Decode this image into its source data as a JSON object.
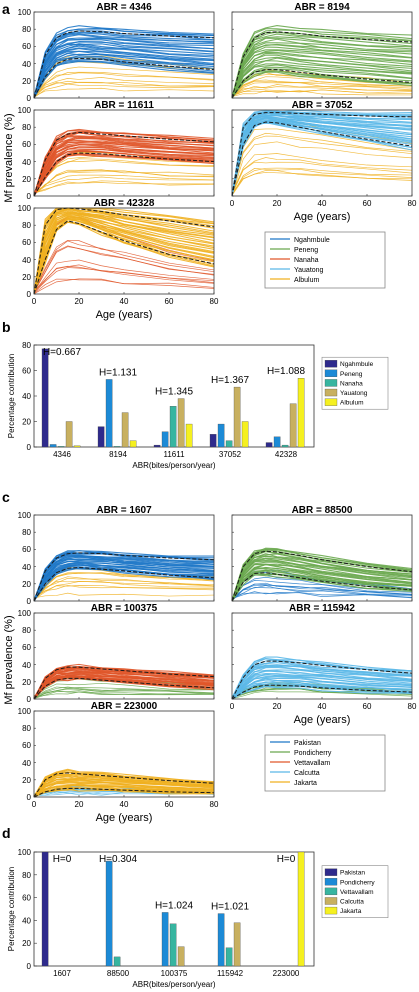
{
  "figure": {
    "panel_labels": [
      "a",
      "b",
      "c",
      "d"
    ]
  },
  "colors": {
    "ngahmbule": "#1f78c8",
    "peneng": "#6aa84f",
    "nanaha": "#e0572a",
    "yauatong": "#5bb8e8",
    "albulum": "#f0b020",
    "pakistan": "#1f78c8",
    "pondicherry": "#6aa84f",
    "vettavallam": "#e0572a",
    "calcutta": "#5bb8e8",
    "jakarta": "#f0b020",
    "bar1": "#2e2a8c",
    "bar2": "#1c8ad6",
    "bar3": "#37b5a0",
    "bar4": "#c8b060",
    "bar5": "#f5f020"
  },
  "panel_a": {
    "ylabel": "Mf prevalence (%)",
    "xlabel": "Age (years)",
    "xticks": [
      "0",
      "20",
      "40",
      "60",
      "80"
    ],
    "yticks": [
      "0",
      "20",
      "40",
      "60",
      "80",
      "100"
    ],
    "titles": [
      "ABR = 4346",
      "ABR = 8194",
      "ABR = 11611",
      "ABR = 37052",
      "ABR = 42328"
    ],
    "legend": [
      "Ngahmbule",
      "Peneng",
      "Nanaha",
      "Yauatong",
      "Albulum"
    ]
  },
  "panel_c": {
    "ylabel": "Mf prevalence (%)",
    "xlabel": "Age (years)",
    "xticks": [
      "0",
      "20",
      "40",
      "60",
      "80"
    ],
    "yticks": [
      "0",
      "20",
      "40",
      "60",
      "80",
      "100"
    ],
    "titles": [
      "ABR = 1607",
      "ABR = 88500",
      "ABR = 100375",
      "ABR = 115942",
      "ABR = 223000"
    ],
    "legend": [
      "Pakistan",
      "Pondicherry",
      "Vettavallam",
      "Calcutta",
      "Jakarta"
    ]
  },
  "chart_data": [
    {
      "type": "line",
      "title": "ABR = 4346",
      "xlabel": "Age (years)",
      "ylabel": "Mf prevalence (%)",
      "xlim": [
        0,
        80
      ],
      "ylim": [
        0,
        100
      ],
      "series": [
        {
          "name": "Ngahmbule",
          "x": [
            0,
            5,
            10,
            15,
            20,
            30,
            40,
            60,
            80
          ],
          "y": [
            0,
            50,
            70,
            76,
            78,
            77,
            75,
            72,
            70
          ]
        },
        {
          "name": "Ngahmbule",
          "x": [
            0,
            5,
            10,
            15,
            20,
            30,
            40,
            60,
            80
          ],
          "y": [
            0,
            25,
            40,
            45,
            46,
            45,
            42,
            37,
            33
          ]
        },
        {
          "name": "Albulum",
          "x": [
            0,
            5,
            10,
            15,
            20,
            30,
            40,
            60,
            80
          ],
          "y": [
            0,
            10,
            18,
            22,
            24,
            24,
            23,
            20,
            18
          ]
        }
      ]
    },
    {
      "type": "line",
      "title": "ABR = 8194",
      "xlabel": "Age (years)",
      "ylabel": "Mf prevalence (%)",
      "xlim": [
        0,
        80
      ],
      "ylim": [
        0,
        100
      ],
      "series": [
        {
          "name": "Peneng",
          "x": [
            0,
            5,
            10,
            15,
            20,
            30,
            40,
            60,
            80
          ],
          "y": [
            0,
            48,
            70,
            76,
            77,
            75,
            72,
            68,
            65
          ]
        },
        {
          "name": "Peneng",
          "x": [
            0,
            5,
            10,
            15,
            20,
            30,
            40,
            60,
            80
          ],
          "y": [
            0,
            20,
            30,
            33,
            33,
            30,
            27,
            22,
            18
          ]
        }
      ]
    },
    {
      "type": "line",
      "title": "ABR = 11611",
      "xlabel": "Age (years)",
      "ylabel": "Mf prevalence (%)",
      "xlim": [
        0,
        80
      ],
      "ylim": [
        0,
        100
      ],
      "series": [
        {
          "name": "Nanaha",
          "x": [
            0,
            5,
            10,
            15,
            20,
            30,
            40,
            60,
            80
          ],
          "y": [
            0,
            42,
            65,
            72,
            74,
            72,
            70,
            66,
            63
          ]
        },
        {
          "name": "Nanaha",
          "x": [
            0,
            5,
            10,
            15,
            20,
            30,
            40,
            60,
            80
          ],
          "y": [
            0,
            22,
            40,
            48,
            50,
            49,
            47,
            43,
            40
          ]
        }
      ]
    },
    {
      "type": "line",
      "title": "ABR = 37052",
      "xlabel": "Age (years)",
      "ylabel": "Mf prevalence (%)",
      "xlim": [
        0,
        80
      ],
      "ylim": [
        0,
        100
      ],
      "series": [
        {
          "name": "Yauatong",
          "x": [
            0,
            5,
            10,
            15,
            20,
            30,
            40,
            60,
            80
          ],
          "y": [
            0,
            80,
            95,
            97,
            97,
            96,
            95,
            93,
            92
          ]
        },
        {
          "name": "Yauatong",
          "x": [
            0,
            5,
            10,
            15,
            20,
            30,
            40,
            60,
            80
          ],
          "y": [
            0,
            60,
            82,
            86,
            85,
            80,
            75,
            66,
            58
          ]
        }
      ]
    },
    {
      "type": "line",
      "title": "ABR = 42328",
      "xlabel": "Age (years)",
      "ylabel": "Mf prevalence (%)",
      "xlim": [
        0,
        80
      ],
      "ylim": [
        0,
        100
      ],
      "series": [
        {
          "name": "Albulum",
          "x": [
            0,
            5,
            10,
            15,
            20,
            30,
            40,
            60,
            80
          ],
          "y": [
            0,
            80,
            98,
            100,
            99,
            96,
            92,
            85,
            78
          ]
        },
        {
          "name": "Albulum",
          "x": [
            0,
            5,
            10,
            15,
            20,
            30,
            40,
            60,
            80
          ],
          "y": [
            0,
            40,
            75,
            85,
            82,
            72,
            62,
            46,
            35
          ]
        }
      ]
    },
    {
      "type": "bar",
      "xlabel": "ABR(bites/person/year)",
      "ylabel": "Percentage contribution",
      "ylim": [
        0,
        80
      ],
      "yticks": [
        0,
        20,
        40,
        60,
        80
      ],
      "categories": [
        "4346",
        "8194",
        "11611",
        "37052",
        "42328"
      ],
      "annotations": [
        "H=0.667",
        "H=1.131",
        "H=1.345",
        "H=1.367",
        "H=1.088"
      ],
      "series": [
        {
          "name": "Ngahmbule",
          "values": [
            77,
            16,
            1.5,
            10,
            3.5
          ]
        },
        {
          "name": "Peneng",
          "values": [
            2,
            53,
            12,
            18,
            8
          ]
        },
        {
          "name": "Nanaha",
          "values": [
            0.5,
            0.5,
            32,
            5,
            1.5
          ]
        },
        {
          "name": "Yauatong",
          "values": [
            20,
            27,
            38,
            47,
            34
          ]
        },
        {
          "name": "Albulum",
          "values": [
            1,
            5,
            18,
            20,
            54
          ]
        }
      ]
    },
    {
      "type": "line",
      "title": "ABR = 1607",
      "xlabel": "Age (years)",
      "ylabel": "Mf prevalence (%)",
      "xlim": [
        0,
        80
      ],
      "ylim": [
        0,
        100
      ],
      "series": [
        {
          "name": "Pakistan",
          "x": [
            0,
            5,
            10,
            15,
            20,
            30,
            40,
            60,
            80
          ],
          "y": [
            0,
            35,
            50,
            55,
            56,
            55,
            53,
            50,
            48
          ]
        },
        {
          "name": "Pakistan",
          "x": [
            0,
            5,
            10,
            15,
            20,
            30,
            40,
            60,
            80
          ],
          "y": [
            0,
            20,
            33,
            38,
            39,
            37,
            35,
            30,
            27
          ]
        }
      ]
    },
    {
      "type": "line",
      "title": "ABR = 88500",
      "xlabel": "Age (years)",
      "ylabel": "Mf prevalence (%)",
      "xlim": [
        0,
        80
      ],
      "ylim": [
        0,
        100
      ],
      "series": [
        {
          "name": "Pondicherry",
          "x": [
            0,
            5,
            10,
            15,
            20,
            30,
            40,
            60,
            80
          ],
          "y": [
            0,
            40,
            55,
            58,
            57,
            53,
            48,
            40,
            34
          ]
        },
        {
          "name": "Pondicherry",
          "x": [
            0,
            5,
            10,
            15,
            20,
            30,
            40,
            60,
            80
          ],
          "y": [
            0,
            22,
            32,
            33,
            31,
            27,
            23,
            17,
            13
          ]
        }
      ]
    },
    {
      "type": "line",
      "title": "ABR = 100375",
      "xlabel": "Age (years)",
      "ylabel": "Mf prevalence (%)",
      "xlim": [
        0,
        80
      ],
      "ylim": [
        0,
        100
      ],
      "series": [
        {
          "name": "Vettavallam",
          "x": [
            0,
            5,
            10,
            15,
            20,
            30,
            40,
            60,
            80
          ],
          "y": [
            0,
            24,
            34,
            37,
            37,
            35,
            33,
            29,
            26
          ]
        },
        {
          "name": "Vettavallam",
          "x": [
            0,
            5,
            10,
            15,
            20,
            30,
            40,
            60,
            80
          ],
          "y": [
            0,
            15,
            22,
            24,
            24,
            22,
            20,
            16,
            13
          ]
        }
      ]
    },
    {
      "type": "line",
      "title": "ABR = 115942",
      "xlabel": "Age (years)",
      "ylabel": "Mf prevalence (%)",
      "xlim": [
        0,
        80
      ],
      "ylim": [
        0,
        100
      ],
      "series": [
        {
          "name": "Calcutta",
          "x": [
            0,
            5,
            10,
            15,
            20,
            30,
            40,
            60,
            80
          ],
          "y": [
            0,
            25,
            40,
            44,
            44,
            42,
            39,
            34,
            30
          ]
        },
        {
          "name": "Calcutta",
          "x": [
            0,
            5,
            10,
            15,
            20,
            30,
            40,
            60,
            80
          ],
          "y": [
            0,
            8,
            14,
            16,
            16,
            15,
            13,
            10,
            8
          ]
        }
      ]
    },
    {
      "type": "line",
      "title": "ABR = 223000",
      "xlabel": "Age (years)",
      "ylabel": "Mf prevalence (%)",
      "xlim": [
        0,
        80
      ],
      "ylim": [
        0,
        100
      ],
      "series": [
        {
          "name": "Jakarta",
          "x": [
            0,
            5,
            10,
            15,
            20,
            30,
            40,
            60,
            80
          ],
          "y": [
            0,
            20,
            27,
            28,
            27,
            25,
            23,
            19,
            16
          ]
        },
        {
          "name": "Jakarta",
          "x": [
            0,
            5,
            10,
            15,
            20,
            30,
            40,
            60,
            80
          ],
          "y": [
            0,
            6,
            9,
            10,
            10,
            9,
            8,
            6,
            5
          ]
        }
      ]
    },
    {
      "type": "bar",
      "xlabel": "ABR(bites/person/year)",
      "ylabel": "Percentage contribution",
      "ylim": [
        0,
        100
      ],
      "yticks": [
        0,
        20,
        40,
        60,
        80,
        100
      ],
      "categories": [
        "1607",
        "88500",
        "100375",
        "115942",
        "223000"
      ],
      "annotations": [
        "H=0",
        "H=0.304",
        "H=1.024",
        "H=1.021",
        "H=0"
      ],
      "series": [
        {
          "name": "Pakistan",
          "values": [
            100,
            0,
            0,
            0,
            0
          ]
        },
        {
          "name": "Pondicherry",
          "values": [
            0,
            92,
            47,
            46,
            0
          ]
        },
        {
          "name": "Vettavallam",
          "values": [
            0,
            8,
            37,
            16,
            0
          ]
        },
        {
          "name": "Calcutta",
          "values": [
            0,
            0,
            17,
            38,
            0
          ]
        },
        {
          "name": "Jakarta",
          "values": [
            0,
            0,
            0,
            0,
            100
          ]
        }
      ]
    }
  ]
}
